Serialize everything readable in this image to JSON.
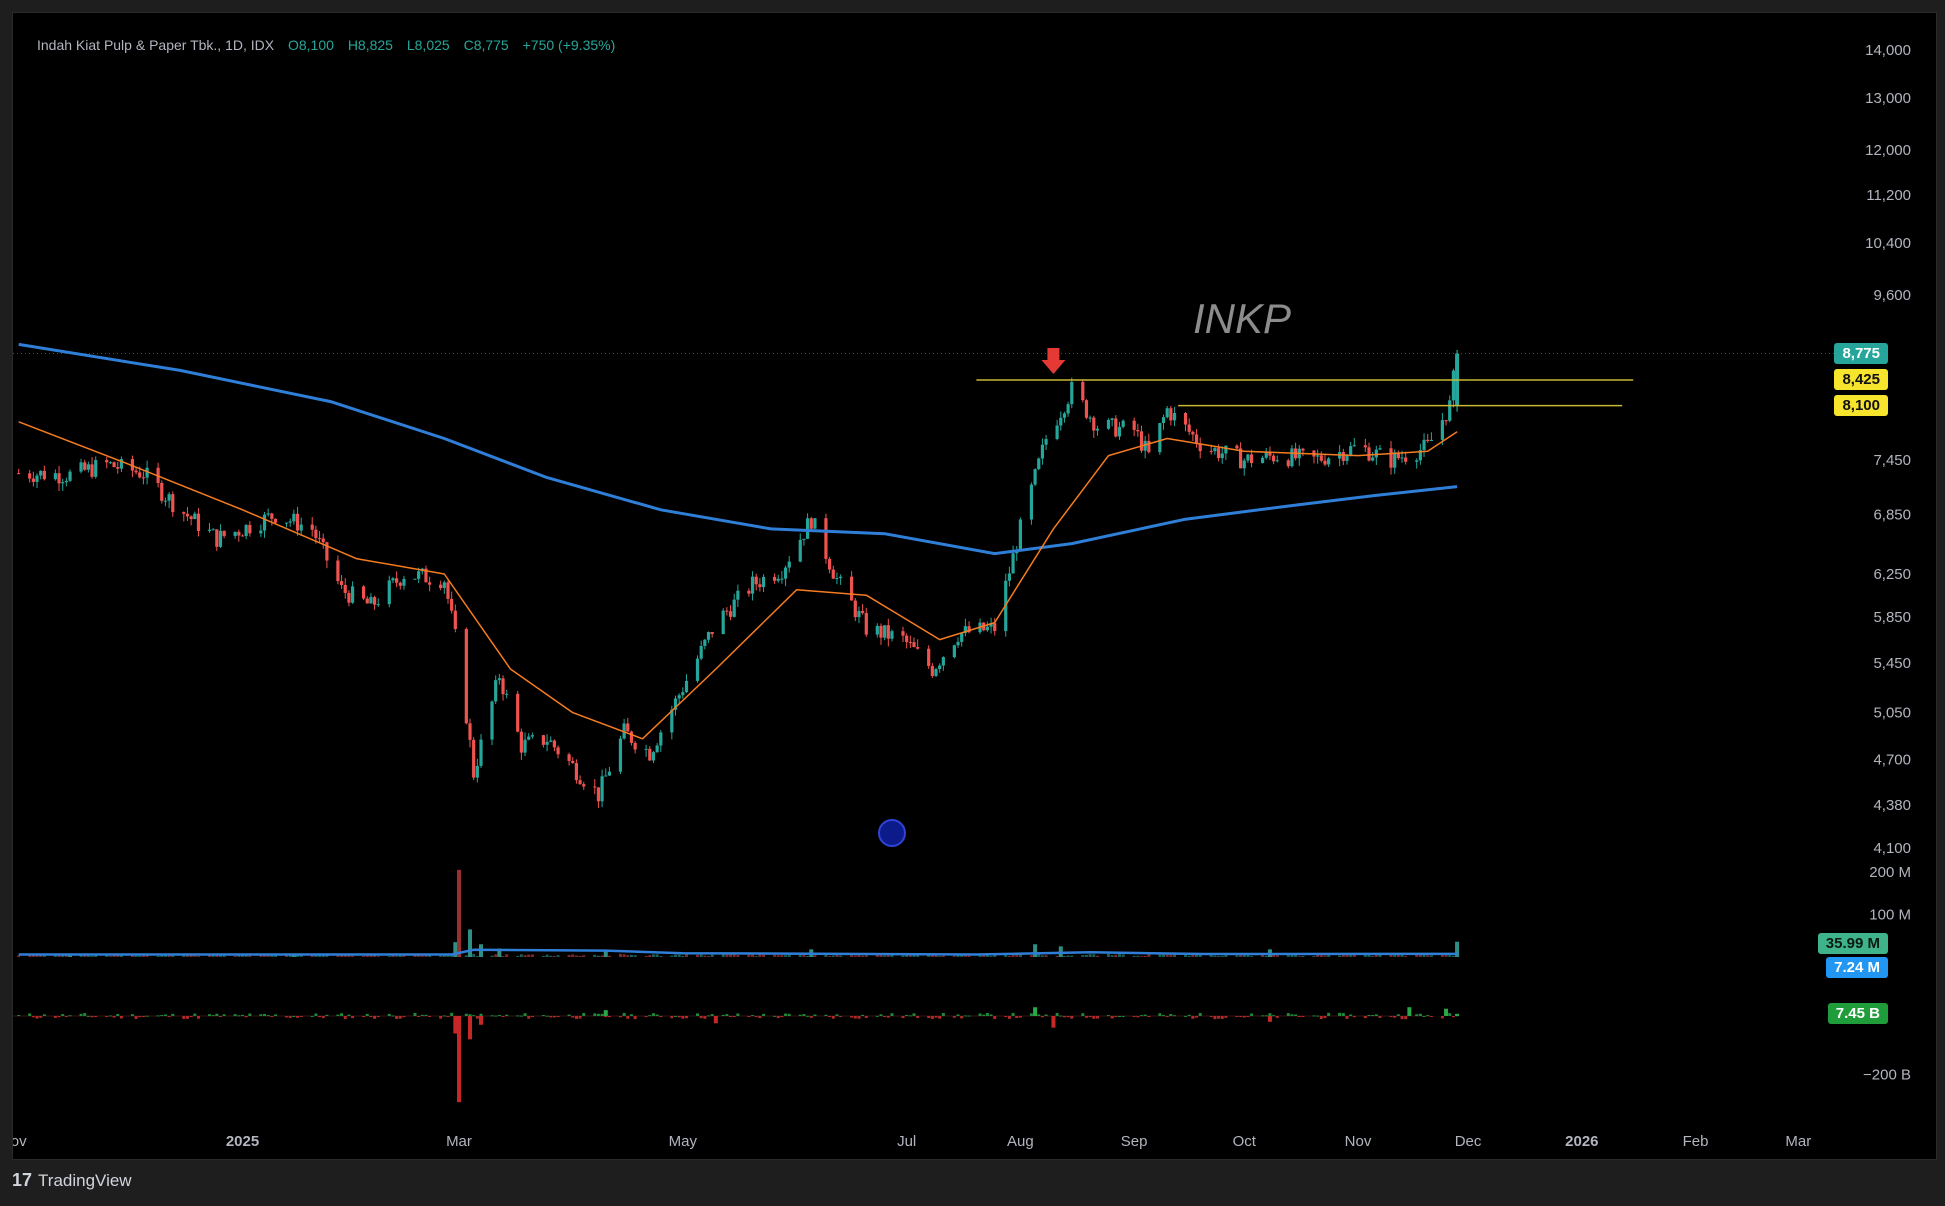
{
  "legend": {
    "symbol": "Indah Kiat Pulp & Paper Tbk., 1D, IDX",
    "open": "O8,100",
    "high": "H8,825",
    "low": "L8,025",
    "close": "C8,775",
    "change": "+750 (+9.35%)"
  },
  "watermark": "INKP",
  "footer": {
    "brand": "TradingView",
    "logo_icon": "tradingview-logo-icon"
  },
  "colors": {
    "up": "#26a69a",
    "down": "#ef5350",
    "ema_short": "#f57c20",
    "ma_long": "#2f7fd8",
    "resistance": "#c8b832",
    "arrow": "#e53935",
    "last_price_badge": "#26a69a",
    "level_badge": "#f6e52c",
    "volume_ma_badge": "#2196f3",
    "netflow_badge": "#1f9d3a"
  },
  "price_axis_labels": [
    {
      "text": "14,000",
      "value": 14000
    },
    {
      "text": "13,000",
      "value": 13000
    },
    {
      "text": "12,000",
      "value": 12000
    },
    {
      "text": "11,200",
      "value": 11200
    },
    {
      "text": "10,400",
      "value": 10400
    },
    {
      "text": "9,600",
      "value": 9600
    },
    {
      "text": "7,450",
      "value": 7450
    },
    {
      "text": "6,850",
      "value": 6850
    },
    {
      "text": "6,250",
      "value": 6250
    },
    {
      "text": "5,850",
      "value": 5850
    },
    {
      "text": "5,450",
      "value": 5450
    },
    {
      "text": "5,050",
      "value": 5050
    },
    {
      "text": "4,700",
      "value": 4700
    },
    {
      "text": "4,380",
      "value": 4380
    },
    {
      "text": "4,100",
      "value": 4100
    }
  ],
  "price_badges": [
    {
      "text": "8,775",
      "value": 8775,
      "kind": "last"
    },
    {
      "text": "8,425",
      "value": 8425,
      "kind": "level"
    },
    {
      "text": "8,100",
      "value": 8100,
      "kind": "level"
    }
  ],
  "volume_axis_labels": [
    {
      "text": "200 M",
      "value": 200
    },
    {
      "text": "100 M",
      "value": 100
    }
  ],
  "volume_badges": [
    {
      "text": "35.99 M",
      "kind": "volume"
    },
    {
      "text": "7.24 M",
      "kind": "volume_ma"
    }
  ],
  "netflow_axis_labels": [
    {
      "text": "−200 B",
      "value": -200
    }
  ],
  "netflow_badges": [
    {
      "text": "7.45 B",
      "kind": "netflow"
    }
  ],
  "time_axis_labels": [
    {
      "text": "ov",
      "date": "2024-11-01"
    },
    {
      "text": "2025",
      "date": "2025-01-01"
    },
    {
      "text": "Mar",
      "date": "2025-03-01"
    },
    {
      "text": "May",
      "date": "2025-05-01"
    },
    {
      "text": "Jul",
      "date": "2025-07-01"
    },
    {
      "text": "Aug",
      "date": "2025-08-01"
    },
    {
      "text": "Sep",
      "date": "2025-09-01"
    },
    {
      "text": "Oct",
      "date": "2025-10-01"
    },
    {
      "text": "Nov",
      "date": "2025-11-01"
    },
    {
      "text": "Dec",
      "date": "2025-12-01"
    },
    {
      "text": "2026",
      "date": "2026-01-01"
    },
    {
      "text": "Feb",
      "date": "2026-02-01"
    },
    {
      "text": "Mar",
      "date": "2026-03-01"
    }
  ],
  "chart_data": {
    "type": "line",
    "title": "Indah Kiat Pulp & Paper Tbk., 1D, IDX",
    "x_range": [
      "2024-10-31",
      "2026-03-05"
    ],
    "y_scale": "log",
    "ylim": [
      4100,
      14000
    ],
    "series": [
      {
        "values": [
          [
            "2024-11-01",
            7300
          ],
          [
            "2024-11-15",
            7280
          ],
          [
            "2024-11-25",
            7400
          ],
          [
            "2024-12-05",
            7300
          ],
          [
            "2024-12-15",
            6900
          ],
          [
            "2024-12-25",
            6600
          ],
          [
            "2025-01-01",
            6700
          ],
          [
            "2025-01-10",
            6850
          ],
          [
            "2025-01-20",
            6700
          ],
          [
            "2025-01-28",
            6100
          ],
          [
            "2025-02-05",
            5950
          ],
          [
            "2025-02-14",
            6250
          ],
          [
            "2025-02-25",
            6200
          ],
          [
            "2025-03-01",
            5500
          ],
          [
            "2025-03-05",
            4600
          ],
          [
            "2025-03-12",
            5350
          ],
          [
            "2025-03-18",
            4800
          ],
          [
            "2025-03-25",
            4850
          ],
          [
            "2025-04-01",
            4650
          ],
          [
            "2025-04-08",
            4450
          ],
          [
            "2025-04-15",
            4900
          ],
          [
            "2025-04-22",
            4750
          ],
          [
            "2025-05-01",
            5250
          ],
          [
            "2025-05-10",
            5800
          ],
          [
            "2025-05-20",
            6150
          ],
          [
            "2025-05-28",
            6300
          ],
          [
            "2025-06-05",
            6800
          ],
          [
            "2025-06-12",
            6200
          ],
          [
            "2025-06-20",
            5750
          ],
          [
            "2025-06-30",
            5650
          ],
          [
            "2025-07-08",
            5400
          ],
          [
            "2025-07-15",
            5700
          ],
          [
            "2025-07-25",
            5750
          ],
          [
            "2025-08-01",
            6700
          ],
          [
            "2025-08-08",
            7700
          ],
          [
            "2025-08-15",
            8300
          ],
          [
            "2025-08-22",
            7850
          ],
          [
            "2025-09-01",
            7800
          ],
          [
            "2025-09-05",
            7500
          ],
          [
            "2025-09-10",
            8050
          ],
          [
            "2025-09-20",
            7600
          ],
          [
            "2025-10-01",
            7450
          ],
          [
            "2025-10-10",
            7500
          ],
          [
            "2025-10-20",
            7450
          ],
          [
            "2025-11-01",
            7600
          ],
          [
            "2025-11-10",
            7450
          ],
          [
            "2025-11-20",
            7600
          ],
          [
            "2025-11-26",
            8100
          ],
          [
            "2025-11-28",
            8775
          ]
        ]
      },
      {
        "values": [
          [
            "2024-11-01",
            7900
          ],
          [
            "2024-12-01",
            7400
          ],
          [
            "2025-01-01",
            6900
          ],
          [
            "2025-02-01",
            6400
          ],
          [
            "2025-02-25",
            6250
          ],
          [
            "2025-03-15",
            5400
          ],
          [
            "2025-04-01",
            5050
          ],
          [
            "2025-04-20",
            4850
          ],
          [
            "2025-05-10",
            5400
          ],
          [
            "2025-06-01",
            6100
          ],
          [
            "2025-06-20",
            6050
          ],
          [
            "2025-07-10",
            5650
          ],
          [
            "2025-07-25",
            5800
          ],
          [
            "2025-08-10",
            6700
          ],
          [
            "2025-08-25",
            7500
          ],
          [
            "2025-09-10",
            7700
          ],
          [
            "2025-10-01",
            7550
          ],
          [
            "2025-11-01",
            7500
          ],
          [
            "2025-11-20",
            7550
          ],
          [
            "2025-11-28",
            7780
          ]
        ]
      },
      {
        "values": [
          [
            "2024-11-01",
            8900
          ],
          [
            "2024-12-15",
            8550
          ],
          [
            "2025-01-25",
            8150
          ],
          [
            "2025-02-25",
            7700
          ],
          [
            "2025-03-25",
            7250
          ],
          [
            "2025-04-25",
            6900
          ],
          [
            "2025-05-25",
            6700
          ],
          [
            "2025-06-25",
            6650
          ],
          [
            "2025-07-25",
            6450
          ],
          [
            "2025-08-15",
            6550
          ],
          [
            "2025-09-15",
            6800
          ],
          [
            "2025-10-15",
            6950
          ],
          [
            "2025-11-05",
            7050
          ],
          [
            "2025-11-28",
            7150
          ]
        ]
      }
    ],
    "resistance_levels": [
      {
        "value": 8425,
        "from": "2025-07-20",
        "to": "2026-01-15"
      },
      {
        "value": 8100,
        "from": "2025-09-13",
        "to": "2026-01-12"
      }
    ],
    "annotations": [
      {
        "type": "down-arrow",
        "date": "2025-08-10",
        "above_value": 8425
      },
      {
        "type": "event-marker",
        "date": "2025-06-27"
      }
    ],
    "volume": {
      "unit": "M",
      "ylim": [
        0,
        200
      ],
      "bars": [
        [
          "2024-11-15",
          3
        ],
        [
          "2025-01-15",
          4
        ],
        [
          "2025-02-28",
          35
        ],
        [
          "2025-03-01",
          205
        ],
        [
          "2025-03-04",
          65
        ],
        [
          "2025-03-07",
          30
        ],
        [
          "2025-03-12",
          20
        ],
        [
          "2025-04-10",
          15
        ],
        [
          "2025-06-05",
          18
        ],
        [
          "2025-08-05",
          30
        ],
        [
          "2025-08-12",
          25
        ],
        [
          "2025-10-08",
          18
        ],
        [
          "2025-11-28",
          36
        ]
      ],
      "ma": [
        [
          "2024-11-01",
          6
        ],
        [
          "2025-02-27",
          6
        ],
        [
          "2025-03-05",
          17
        ],
        [
          "2025-04-10",
          15
        ],
        [
          "2025-05-01",
          9
        ],
        [
          "2025-07-20",
          6
        ],
        [
          "2025-08-20",
          11
        ],
        [
          "2025-09-20",
          7
        ],
        [
          "2025-11-28",
          7.24
        ]
      ]
    },
    "net_flow": {
      "unit": "B",
      "bars": [
        [
          "2025-02-28",
          -60
        ],
        [
          "2025-03-01",
          -295
        ],
        [
          "2025-03-04",
          -80
        ],
        [
          "2025-03-07",
          -30
        ],
        [
          "2025-04-10",
          20
        ],
        [
          "2025-05-10",
          -25
        ],
        [
          "2025-08-05",
          30
        ],
        [
          "2025-08-10",
          -40
        ],
        [
          "2025-10-08",
          -20
        ],
        [
          "2025-11-15",
          30
        ],
        [
          "2025-11-25",
          25
        ],
        [
          "2025-11-28",
          7.45
        ]
      ]
    }
  }
}
